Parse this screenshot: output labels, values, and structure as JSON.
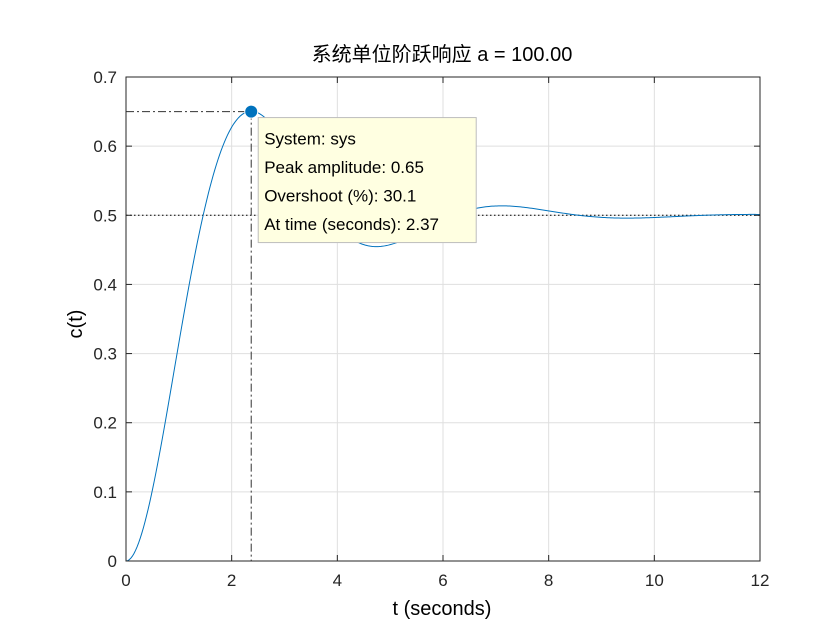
{
  "chart_data": {
    "type": "line",
    "title": "系统单位阶跃响应 a = 100.00",
    "xlabel": "t (seconds)",
    "ylabel": "c(t)",
    "xlim": [
      0,
      12
    ],
    "ylim": [
      0,
      0.7
    ],
    "xticks": [
      0,
      2,
      4,
      6,
      8,
      10,
      12
    ],
    "yticks": [
      0,
      0.1,
      0.2,
      0.3,
      0.4,
      0.5,
      0.6,
      0.7
    ],
    "grid": true,
    "legend": "none",
    "series": [
      {
        "name": "sys",
        "color": "#0072BD",
        "model": {
          "steady_state": 0.5,
          "overshoot_fraction": 0.301,
          "peak_time": 2.37
        },
        "x": [
          0,
          0.5,
          1.0,
          1.5,
          2.0,
          2.37,
          3.0,
          3.5,
          4.0,
          4.5,
          4.74,
          5.0,
          5.5,
          6.0,
          6.5,
          7.11,
          7.5,
          8.0,
          8.5,
          9.0,
          9.5,
          10.0,
          10.5,
          11.0,
          11.5,
          12.0
        ],
        "y": [
          0,
          0.085,
          0.28,
          0.47,
          0.61,
          0.65,
          0.605,
          0.54,
          0.48,
          0.455,
          0.452,
          0.458,
          0.475,
          0.495,
          0.508,
          0.515,
          0.511,
          0.503,
          0.497,
          0.495,
          0.496,
          0.498,
          0.501,
          0.502,
          0.501,
          0.5
        ]
      }
    ],
    "reference_line": {
      "y": 0.5,
      "style": "dotted",
      "color": "#000000"
    },
    "peak_marker": {
      "x": 2.37,
      "y": 0.65,
      "color": "#0072BD",
      "datatip": {
        "lines": [
          "System: sys",
          "Peak amplitude: 0.65",
          "Overshoot (%): 30.1",
          "At time (seconds): 2.37"
        ],
        "background": "#FFFFE1"
      }
    }
  }
}
